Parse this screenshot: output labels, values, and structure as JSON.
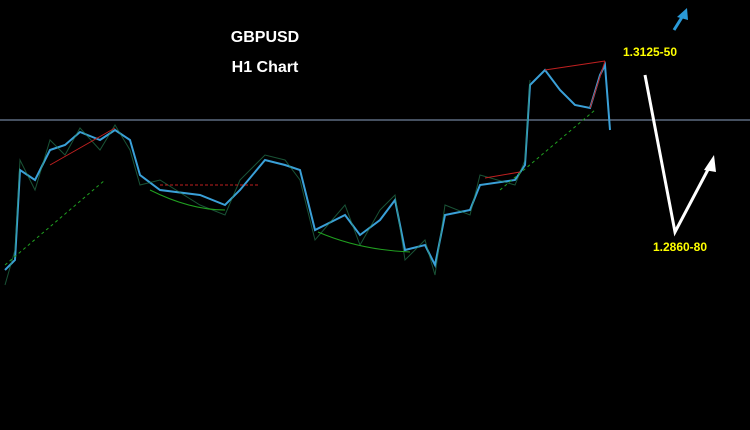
{
  "header": {
    "symbol": "GBPUSD",
    "timeframe": "H1 Chart"
  },
  "annotations": {
    "target_high": "1.3125-50",
    "target_low": "1.2860-80"
  }
}
